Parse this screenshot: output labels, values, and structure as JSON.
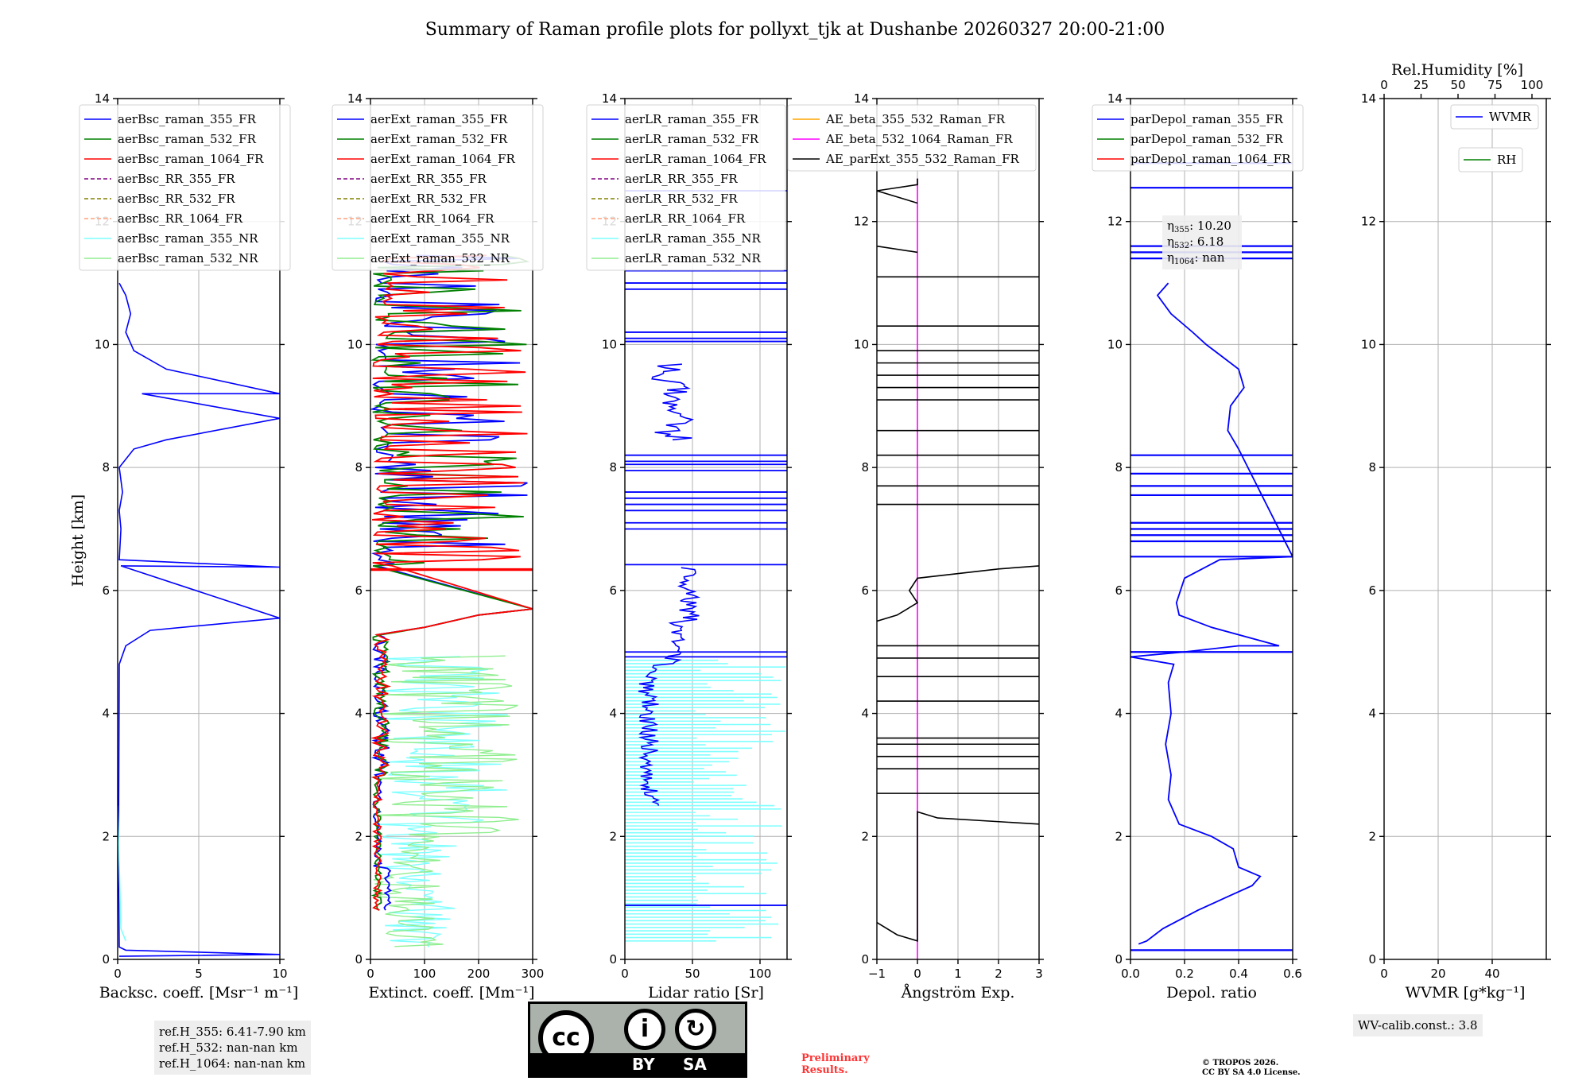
{
  "title": "Summary of Raman profile plots for pollyxt_tjk at Dushanbe 20260327 20:00-21:00",
  "ylabel": "Height [km]",
  "colors": {
    "blue": "#0000ff",
    "green": "#008000",
    "red": "#ff0000",
    "purple": "#800080",
    "olive": "#808000",
    "salmon": "#ffa07a",
    "cyan": "#7fffff",
    "lightgreen": "#90ee90",
    "orange": "#ffa500",
    "magenta": "#ff00ff",
    "black": "#000000"
  },
  "chart_data": [
    {
      "type": "line",
      "id": "bsc",
      "xlabel": "Backsc. coeff. [Msr⁻¹ m⁻¹]",
      "xlim": [
        0,
        10
      ],
      "ylim": [
        0,
        14
      ],
      "xticks": [
        "0",
        "5",
        "10"
      ],
      "yticks": [
        "0",
        "2",
        "4",
        "6",
        "8",
        "10",
        "12",
        "14"
      ],
      "legend": [
        "aerBsc_raman_355_FR",
        "aerBsc_raman_532_FR",
        "aerBsc_raman_1064_FR",
        "aerBsc_RR_355_FR",
        "aerBsc_RR_532_FR",
        "aerBsc_RR_1064_FR",
        "aerBsc_raman_355_NR",
        "aerBsc_raman_532_NR"
      ],
      "series": [
        {
          "name": "aerBsc_raman_355_FR",
          "points": [
            [
              0.1,
              0.05
            ],
            [
              10,
              0.08
            ],
            [
              0.5,
              0.15
            ],
            [
              0.1,
              0.2
            ],
            [
              0.05,
              1.5
            ],
            [
              0.1,
              4.8
            ],
            [
              0.5,
              5.1
            ],
            [
              2.0,
              5.35
            ],
            [
              6.0,
              5.45
            ],
            [
              10,
              5.55
            ],
            [
              0.2,
              6.4
            ],
            [
              10,
              6.38
            ],
            [
              0.1,
              6.5
            ],
            [
              0.2,
              7.0
            ],
            [
              0.1,
              7.3
            ],
            [
              0.3,
              7.6
            ],
            [
              0.1,
              8.0
            ],
            [
              1.0,
              8.3
            ],
            [
              3.0,
              8.45
            ],
            [
              10,
              8.8
            ],
            [
              1.5,
              9.2
            ],
            [
              10,
              9.2
            ],
            [
              3.0,
              9.6
            ],
            [
              1.0,
              9.9
            ],
            [
              0.5,
              10.2
            ],
            [
              0.8,
              10.5
            ],
            [
              0.5,
              10.8
            ],
            [
              0.1,
              11.0
            ]
          ]
        },
        {
          "name": "aerBsc_raman_355_NR",
          "points": [
            [
              0.5,
              0.3
            ],
            [
              0.2,
              0.5
            ],
            [
              0.0,
              2.5
            ]
          ]
        }
      ]
    },
    {
      "type": "line",
      "id": "ext",
      "xlabel": "Extinct. coeff. [Mm⁻¹]",
      "xlim": [
        0,
        300
      ],
      "ylim": [
        0,
        14
      ],
      "xticks": [
        "0",
        "100",
        "200",
        "300"
      ],
      "yticks": [
        "0",
        "2",
        "4",
        "6",
        "8",
        "10",
        "12",
        "14"
      ],
      "legend": [
        "aerExt_raman_355_FR",
        "aerExt_raman_532_FR",
        "aerExt_raman_1064_FR",
        "aerExt_RR_355_FR",
        "aerExt_RR_532_FR",
        "aerExt_RR_1064_FR",
        "aerExt_raman_355_NR",
        "aerExt_raman_532_NR"
      ]
    },
    {
      "type": "line",
      "id": "lr",
      "xlabel": "Lidar ratio [Sr]",
      "xlim": [
        0,
        120
      ],
      "ylim": [
        0,
        14
      ],
      "xticks": [
        "0",
        "50",
        "100"
      ],
      "yticks": [
        "0",
        "2",
        "4",
        "6",
        "8",
        "10",
        "12",
        "14"
      ],
      "legend": [
        "aerLR_raman_355_FR",
        "aerLR_raman_532_FR",
        "aerLR_raman_1064_FR",
        "aerLR_RR_355_FR",
        "aerLR_RR_532_FR",
        "aerLR_RR_1064_FR",
        "aerLR_raman_355_NR",
        "aerLR_raman_532_NR"
      ]
    },
    {
      "type": "line",
      "id": "ae",
      "xlabel": "Ångström Exp.",
      "xlim": [
        -1,
        3
      ],
      "ylim": [
        0,
        14
      ],
      "xticks": [
        "−1",
        "0",
        "1",
        "2",
        "3"
      ],
      "yticks": [
        "0",
        "2",
        "4",
        "6",
        "8",
        "10",
        "12",
        "14"
      ],
      "legend": [
        "AE_beta_355_532_Raman_FR",
        "AE_beta_532_1064_Raman_FR",
        "AE_parExt_355_532_Raman_FR"
      ]
    },
    {
      "type": "line",
      "id": "dep",
      "xlabel": "Depol. ratio",
      "xlim": [
        0,
        0.6
      ],
      "ylim": [
        0,
        14
      ],
      "xticks": [
        "0.0",
        "0.2",
        "0.4",
        "0.6"
      ],
      "yticks": [
        "0",
        "2",
        "4",
        "6",
        "8",
        "10",
        "12",
        "14"
      ],
      "legend": [
        "parDepol_raman_355_FR",
        "parDepol_raman_532_FR",
        "parDepol_raman_1064_FR"
      ],
      "eta": [
        "355: 10.20",
        "532: 6.18",
        "1064: nan"
      ],
      "series": [
        {
          "name": "parDepol_raman_355_FR",
          "points": [
            [
              0.03,
              0.25
            ],
            [
              0.06,
              0.3
            ],
            [
              0.12,
              0.5
            ],
            [
              0.25,
              0.8
            ],
            [
              0.35,
              1.0
            ],
            [
              0.45,
              1.2
            ],
            [
              0.48,
              1.35
            ],
            [
              0.4,
              1.5
            ],
            [
              0.38,
              1.8
            ],
            [
              0.3,
              2.0
            ],
            [
              0.18,
              2.2
            ],
            [
              0.14,
              2.6
            ],
            [
              0.15,
              3.0
            ],
            [
              0.13,
              3.5
            ],
            [
              0.15,
              4.0
            ],
            [
              0.14,
              4.5
            ],
            [
              0.16,
              4.8
            ],
            [
              0.0,
              4.92
            ],
            [
              0.2,
              5.0
            ],
            [
              0.4,
              5.1
            ],
            [
              0.55,
              5.1
            ],
            [
              0.3,
              5.4
            ],
            [
              0.18,
              5.6
            ],
            [
              0.17,
              5.8
            ],
            [
              0.2,
              6.2
            ],
            [
              0.33,
              6.5
            ],
            [
              0.6,
              6.55
            ],
            [
              0.4,
              8.3
            ],
            [
              0.36,
              8.6
            ],
            [
              0.37,
              9.0
            ],
            [
              0.42,
              9.3
            ],
            [
              0.4,
              9.6
            ],
            [
              0.34,
              9.8
            ],
            [
              0.28,
              10.0
            ],
            [
              0.23,
              10.2
            ],
            [
              0.15,
              10.5
            ],
            [
              0.1,
              10.8
            ],
            [
              0.14,
              11.0
            ]
          ]
        }
      ]
    },
    {
      "type": "line",
      "id": "wv",
      "xlabel": "WVMR [g*kg⁻¹]",
      "xlim": [
        0,
        60
      ],
      "ylim": [
        0,
        14
      ],
      "xticks": [
        "0",
        "20",
        "40"
      ],
      "yticks": [
        "0",
        "2",
        "4",
        "6",
        "8",
        "10",
        "12",
        "14"
      ],
      "top_label": "Rel.Humidity [%]",
      "top_ticks": [
        "0",
        "25",
        "50",
        "75",
        "100"
      ],
      "legend": [
        "WVMR",
        "RH"
      ]
    }
  ],
  "notes": {
    "ref": [
      "ref.H_355: 6.41-7.90 km",
      "ref.H_532: nan-nan km",
      "ref.H_1064: nan-nan km"
    ],
    "wv_calib": "WV-calib.const.: 3.8",
    "preliminary": [
      "Preliminary",
      "Results."
    ],
    "copyright": [
      "© TROPOS 2026.",
      "CC BY SA 4.0 License."
    ],
    "cc_badge": {
      "cc": "cc",
      "by": "BY",
      "sa": "SA"
    }
  }
}
